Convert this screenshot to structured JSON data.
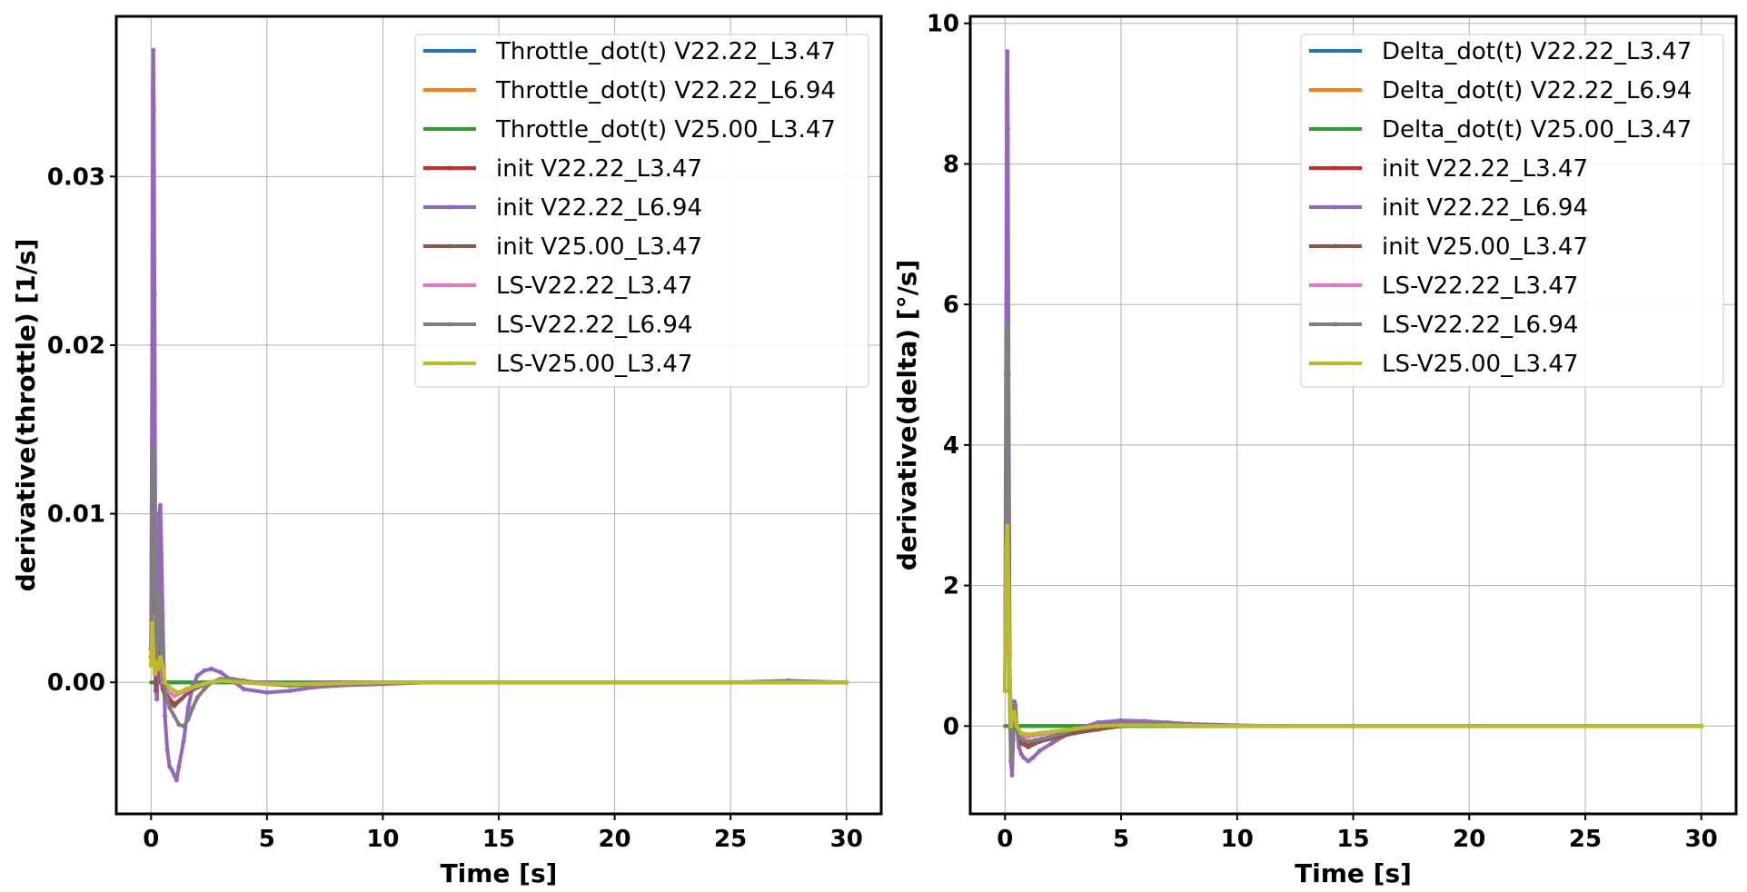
{
  "chart_data": [
    {
      "type": "line",
      "xlabel": "Time [s]",
      "ylabel": "derivative(throttle) [1/s]",
      "xlim": [
        -1.5,
        31.5
      ],
      "ylim": [
        -0.0078,
        0.0395
      ],
      "xticks": [
        0,
        5,
        10,
        15,
        20,
        25,
        30
      ],
      "xtick_labels": [
        "0",
        "5",
        "10",
        "15",
        "20",
        "25",
        "30"
      ],
      "yticks": [
        0.0,
        0.01,
        0.02,
        0.03
      ],
      "ytick_labels": [
        "0.00",
        "0.01",
        "0.02",
        "0.03"
      ],
      "grid": true,
      "legend_position": "top-right",
      "series": [
        {
          "name": "Throttle_dot(t) V22.22_L3.47",
          "color": "#1f77b4",
          "marker": false,
          "x": [
            0,
            30
          ],
          "y": [
            0,
            0
          ]
        },
        {
          "name": "Throttle_dot(t) V22.22_L6.94",
          "color": "#ff7f0e",
          "marker": false,
          "x": [
            0,
            30
          ],
          "y": [
            0,
            0
          ]
        },
        {
          "name": "Throttle_dot(t) V25.00_L3.47",
          "color": "#2ca02c",
          "marker": false,
          "x": [
            0,
            30
          ],
          "y": [
            0,
            0
          ]
        },
        {
          "name": "init V22.22_L3.47",
          "color": "#d62728",
          "marker": true,
          "x": [
            0,
            0.05,
            0.1,
            0.15,
            0.2,
            0.25,
            0.3,
            0.35,
            0.4,
            0.5,
            0.6,
            0.8,
            1.0,
            1.3,
            1.6,
            2.0,
            2.5,
            3.0,
            4.0,
            5.0,
            7.0,
            10.0,
            15.0,
            20.0,
            30.0
          ],
          "y": [
            0.0015,
            0.004,
            0.007,
            0.0055,
            0.0,
            -0.001,
            0.001,
            0.0035,
            0.0015,
            0.0,
            -0.0005,
            -0.001,
            -0.0013,
            -0.001,
            -0.0006,
            -0.0003,
            0.0,
            0.0001,
            0.0,
            -0.0001,
            -0.0001,
            0.0,
            0.0,
            0.0,
            0.0
          ]
        },
        {
          "name": "init V22.22_L6.94",
          "color": "#9467bd",
          "marker": true,
          "x": [
            0,
            0.05,
            0.08,
            0.1,
            0.12,
            0.15,
            0.18,
            0.2,
            0.25,
            0.3,
            0.35,
            0.4,
            0.45,
            0.5,
            0.55,
            0.6,
            0.7,
            0.8,
            0.9,
            1.0,
            1.1,
            1.2,
            1.4,
            1.6,
            1.8,
            2.0,
            2.3,
            2.6,
            3.0,
            3.5,
            4.0,
            5.0,
            6.0,
            7.0,
            8.0,
            10.0,
            12.0,
            15.0,
            20.0,
            25.0,
            30.0
          ],
          "y": [
            0.002,
            0.02,
            0.035,
            0.0375,
            0.034,
            0.023,
            0.01,
            0.003,
            -0.001,
            0.003,
            0.01,
            0.0105,
            0.0075,
            0.004,
            0.001,
            -0.002,
            -0.004,
            -0.005,
            -0.0052,
            -0.0055,
            -0.0058,
            -0.005,
            -0.0035,
            -0.0015,
            -0.0002,
            0.0004,
            0.0007,
            0.0008,
            0.0006,
            0.0001,
            -0.0004,
            -0.0006,
            -0.0005,
            -0.0003,
            -0.0002,
            -0.0001,
            0.0,
            0.0,
            0.0,
            0.0,
            0.0
          ]
        },
        {
          "name": "init V25.00_L3.47",
          "color": "#8c564b",
          "marker": true,
          "x": [
            0,
            0.05,
            0.1,
            0.15,
            0.2,
            0.25,
            0.3,
            0.35,
            0.4,
            0.5,
            0.6,
            0.8,
            1.0,
            1.3,
            1.6,
            2.0,
            2.5,
            3.0,
            4.0,
            5.0,
            7.0,
            10.0,
            15.0,
            20.0,
            30.0
          ],
          "y": [
            0.002,
            0.008,
            0.012,
            0.006,
            -0.0005,
            0.002,
            0.005,
            0.003,
            0.0005,
            -0.0004,
            -0.0008,
            -0.0012,
            -0.0014,
            -0.001,
            -0.0006,
            -0.0003,
            0.0,
            0.0001,
            0.0,
            -0.0001,
            -0.0001,
            0.0,
            0.0,
            0.0,
            0.0
          ]
        },
        {
          "name": "LS-V22.22_L3.47",
          "color": "#e377c2",
          "marker": true,
          "x": [
            0,
            0.05,
            0.1,
            0.15,
            0.2,
            0.3,
            0.4,
            0.5,
            0.7,
            1.0,
            1.5,
            2.0,
            3.0,
            4.0,
            6.0,
            10.0,
            20.0,
            30.0
          ],
          "y": [
            0.001,
            0.003,
            0.004,
            0.002,
            0.0005,
            0.0015,
            0.001,
            0.0,
            -0.0005,
            -0.0008,
            -0.0005,
            -0.0002,
            0.0001,
            0.0,
            -0.0001,
            0.0,
            0.0,
            0.0
          ]
        },
        {
          "name": "LS-V22.22_L6.94",
          "color": "#7f7f7f",
          "marker": true,
          "x": [
            0,
            0.05,
            0.1,
            0.15,
            0.2,
            0.25,
            0.3,
            0.35,
            0.4,
            0.45,
            0.5,
            0.6,
            0.7,
            0.8,
            1.0,
            1.2,
            1.4,
            1.6,
            1.8,
            2.0,
            2.3,
            2.6,
            3.0,
            3.5,
            4.0,
            5.0,
            6.0,
            8.0,
            10.0,
            15.0,
            20.0,
            25.0,
            27.5,
            30.0
          ],
          "y": [
            0.002,
            0.007,
            0.014,
            0.012,
            0.005,
            0.001,
            0.003,
            0.0055,
            0.004,
            0.002,
            0.0005,
            -0.0005,
            -0.001,
            -0.0015,
            -0.002,
            -0.0025,
            -0.0026,
            -0.0022,
            -0.0015,
            -0.0009,
            -0.0004,
            0.0,
            0.0002,
            0.0002,
            0.0001,
            -0.0001,
            -0.0002,
            -0.0001,
            0.0,
            0.0,
            0.0,
            0.0,
            0.0001,
            0.0
          ]
        },
        {
          "name": "LS-V25.00_L3.47",
          "color": "#bcbd22",
          "marker": true,
          "x": [
            0,
            0.05,
            0.1,
            0.15,
            0.2,
            0.3,
            0.4,
            0.5,
            0.6,
            0.8,
            1.0,
            1.2,
            1.5,
            2.0,
            2.5,
            3.0,
            4.0,
            5.0,
            7.0,
            10.0,
            15.0,
            20.0,
            25.0,
            30.0
          ],
          "y": [
            0.001,
            0.0035,
            0.002,
            0.0005,
            0.0012,
            0.0008,
            0.0015,
            0.001,
            0.0,
            -0.0003,
            -0.0005,
            -0.0006,
            -0.0004,
            -0.0002,
            0.0,
            0.0001,
            0.0,
            -0.0001,
            -0.0001,
            0.0,
            0.0,
            0.0,
            0.0,
            0.0
          ]
        }
      ]
    },
    {
      "type": "line",
      "xlabel": "Time [s]",
      "ylabel": "derivative(delta) [°/s]",
      "xlim": [
        -1.5,
        31.5
      ],
      "ylim": [
        -1.25,
        10.1
      ],
      "xticks": [
        0,
        5,
        10,
        15,
        20,
        25,
        30
      ],
      "xtick_labels": [
        "0",
        "5",
        "10",
        "15",
        "20",
        "25",
        "30"
      ],
      "yticks": [
        0,
        2,
        4,
        6,
        8,
        10
      ],
      "ytick_labels": [
        "0",
        "2",
        "4",
        "6",
        "8",
        "10"
      ],
      "grid": true,
      "legend_position": "top-right",
      "series": [
        {
          "name": "Delta_dot(t) V22.22_L3.47",
          "color": "#1f77b4",
          "marker": false,
          "x": [
            0,
            30
          ],
          "y": [
            0,
            0
          ]
        },
        {
          "name": "Delta_dot(t) V22.22_L6.94",
          "color": "#ff7f0e",
          "marker": false,
          "x": [
            0,
            30
          ],
          "y": [
            0,
            0
          ]
        },
        {
          "name": "Delta_dot(t) V25.00_L3.47",
          "color": "#2ca02c",
          "marker": false,
          "x": [
            0,
            30
          ],
          "y": [
            0,
            0
          ]
        },
        {
          "name": "init V22.22_L3.47",
          "color": "#d62728",
          "marker": true,
          "x": [
            0,
            0.05,
            0.1,
            0.15,
            0.2,
            0.3,
            0.4,
            0.5,
            0.7,
            1.0,
            1.5,
            2.0,
            3.0,
            4.0,
            5.0,
            6.0,
            8.0,
            10.0,
            15.0,
            20.0,
            30.0
          ],
          "y": [
            0.5,
            3.0,
            5.0,
            3.0,
            0.5,
            -0.3,
            0.3,
            0.0,
            -0.2,
            -0.25,
            -0.2,
            -0.15,
            -0.1,
            -0.05,
            0.0,
            0.03,
            0.02,
            0.0,
            0.0,
            0.0,
            0.0
          ]
        },
        {
          "name": "init V22.22_L6.94",
          "color": "#9467bd",
          "marker": true,
          "x": [
            0,
            0.04,
            0.08,
            0.1,
            0.12,
            0.15,
            0.2,
            0.25,
            0.3,
            0.35,
            0.4,
            0.45,
            0.5,
            0.6,
            0.7,
            0.8,
            1.0,
            1.2,
            1.5,
            2.0,
            2.5,
            3.0,
            4.0,
            5.0,
            6.0,
            7.0,
            8.0,
            10.0,
            12.0,
            15.0,
            20.0,
            30.0
          ],
          "y": [
            0.5,
            5.0,
            9.0,
            9.6,
            8.5,
            5.0,
            1.0,
            -0.5,
            -0.7,
            -0.2,
            0.35,
            0.3,
            0.0,
            -0.3,
            -0.4,
            -0.45,
            -0.5,
            -0.45,
            -0.35,
            -0.25,
            -0.15,
            -0.05,
            0.05,
            0.08,
            0.07,
            0.05,
            0.03,
            0.01,
            0.0,
            0.0,
            0.0,
            0.0
          ]
        },
        {
          "name": "init V25.00_L3.47",
          "color": "#8c564b",
          "marker": true,
          "x": [
            0,
            0.05,
            0.1,
            0.15,
            0.2,
            0.3,
            0.4,
            0.5,
            0.7,
            1.0,
            1.5,
            2.0,
            3.0,
            4.0,
            5.0,
            6.0,
            8.0,
            10.0,
            15.0,
            20.0,
            30.0
          ],
          "y": [
            0.5,
            3.5,
            5.5,
            3.5,
            0.8,
            -0.4,
            0.3,
            0.0,
            -0.25,
            -0.3,
            -0.22,
            -0.18,
            -0.1,
            -0.04,
            0.0,
            0.03,
            0.02,
            0.0,
            0.0,
            0.0,
            0.0
          ]
        },
        {
          "name": "LS-V22.22_L3.47",
          "color": "#e377c2",
          "marker": true,
          "x": [
            0,
            0.05,
            0.1,
            0.15,
            0.2,
            0.3,
            0.4,
            0.5,
            0.7,
            1.0,
            1.5,
            2.0,
            3.0,
            4.0,
            5.0,
            7.0,
            10.0,
            20.0,
            30.0
          ],
          "y": [
            0.5,
            2.0,
            2.6,
            1.8,
            0.5,
            -0.1,
            0.2,
            0.0,
            -0.15,
            -0.15,
            -0.12,
            -0.1,
            -0.05,
            0.0,
            0.02,
            0.01,
            0.0,
            0.0,
            0.0
          ]
        },
        {
          "name": "LS-V22.22_L6.94",
          "color": "#7f7f7f",
          "marker": true,
          "x": [
            0,
            0.04,
            0.08,
            0.1,
            0.12,
            0.15,
            0.2,
            0.25,
            0.3,
            0.35,
            0.4,
            0.45,
            0.5,
            0.6,
            0.8,
            1.0,
            1.3,
            1.6,
            2.0,
            2.5,
            3.0,
            4.0,
            5.0,
            6.0,
            8.0,
            10.0,
            15.0,
            20.0,
            30.0
          ],
          "y": [
            0.5,
            3.0,
            5.5,
            5.7,
            4.8,
            2.5,
            0.5,
            -0.5,
            -0.4,
            0.1,
            0.3,
            0.2,
            0.0,
            -0.15,
            -0.2,
            -0.22,
            -0.2,
            -0.18,
            -0.15,
            -0.1,
            -0.05,
            0.0,
            0.03,
            0.03,
            0.02,
            0.0,
            0.0,
            0.0,
            0.0
          ]
        },
        {
          "name": "LS-V25.00_L3.47",
          "color": "#bcbd22",
          "marker": true,
          "x": [
            0,
            0.05,
            0.1,
            0.15,
            0.2,
            0.25,
            0.3,
            0.4,
            0.5,
            0.7,
            1.0,
            1.5,
            2.0,
            3.0,
            4.0,
            5.0,
            7.0,
            10.0,
            20.0,
            30.0
          ],
          "y": [
            0.5,
            2.5,
            2.85,
            2.0,
            0.8,
            0.0,
            0.1,
            0.2,
            0.0,
            -0.1,
            -0.12,
            -0.1,
            -0.08,
            -0.04,
            0.0,
            0.01,
            0.01,
            0.0,
            0.0,
            0.0
          ]
        }
      ]
    }
  ]
}
